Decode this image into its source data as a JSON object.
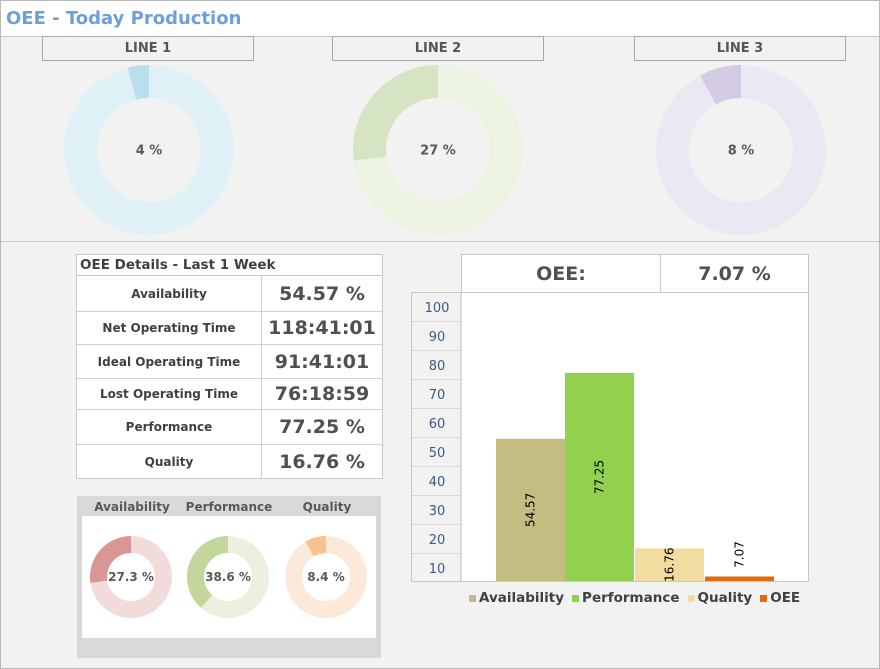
{
  "title": "OEE - Today Production",
  "lines": [
    {
      "label": "LINE 1",
      "percent_text": "4 %",
      "value": 4,
      "color": "#b9dfec",
      "track": "#dff0f7"
    },
    {
      "label": "LINE 2",
      "percent_text": "27 %",
      "value": 27,
      "color": "#d6e4c4",
      "track": "#edf3e1"
    },
    {
      "label": "LINE 3",
      "percent_text": "8 %",
      "value": 8,
      "color": "#d4cbe4",
      "track": "#ebe7f3"
    }
  ],
  "details": {
    "heading": "OEE Details - Last 1 Week",
    "rows": [
      {
        "label": "Availability",
        "value": "54.57 %"
      },
      {
        "label": "Net Operating Time",
        "value": "118:41:01"
      },
      {
        "label": "Ideal Operating Time",
        "value": "91:41:01"
      },
      {
        "label": "Lost Operating Time",
        "value": "76:18:59"
      },
      {
        "label": "Performance",
        "value": "77.25 %"
      },
      {
        "label": "Quality",
        "value": "16.76 %"
      }
    ]
  },
  "mini": [
    {
      "label": "Availability",
      "percent_text": "27.3 %",
      "value": 27.3,
      "color": "#d99694",
      "track": "#f2dcdb"
    },
    {
      "label": "Performance",
      "percent_text": "38.6 %",
      "value": 38.6,
      "color": "#c3d69b",
      "track": "#ebf1de"
    },
    {
      "label": "Quality",
      "percent_text": "8.4 %",
      "value": 8.4,
      "color": "#fac090",
      "track": "#fde9d9"
    }
  ],
  "oee": {
    "label": "OEE:",
    "value": "7.07 %"
  },
  "chart_data": {
    "type": "bar",
    "categories": [
      "Availability",
      "Performance",
      "Quality",
      "OEE"
    ],
    "values": [
      54.57,
      77.25,
      16.76,
      7.07
    ],
    "data_labels": [
      "54.57",
      "77.25",
      "16.76",
      "7.07"
    ],
    "colors": [
      "#c4bd82",
      "#92d050",
      "#f2dca0",
      "#e26b0a"
    ],
    "series": [
      {
        "name": "Availability",
        "color": "#c4bd82"
      },
      {
        "name": "Performance",
        "color": "#92d050"
      },
      {
        "name": "Quality",
        "color": "#f2dca0"
      },
      {
        "name": "OEE",
        "color": "#e26b0a"
      }
    ],
    "y_ticks": [
      "10",
      "20",
      "30",
      "40",
      "50",
      "60",
      "70",
      "80",
      "90",
      "100"
    ],
    "ylim": [
      10,
      100
    ],
    "grid": false,
    "legend_position": "bottom"
  }
}
